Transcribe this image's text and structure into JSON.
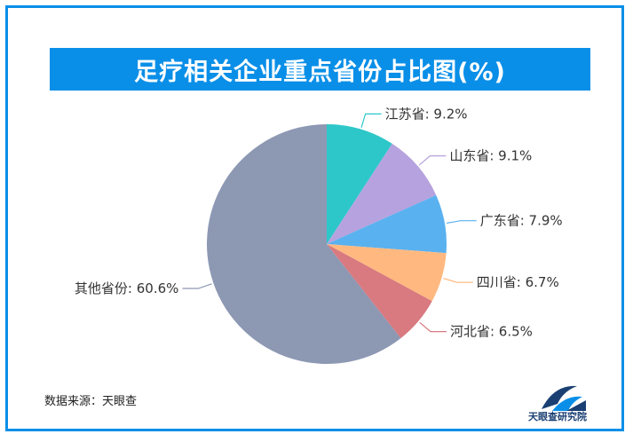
{
  "chart_data": {
    "type": "pie",
    "title": "足疗相关企业重点省份占比图(%)",
    "slices": [
      {
        "label": "江苏省",
        "value": 9.2,
        "value_text": "9.2%",
        "color": "#2ec7c9"
      },
      {
        "label": "山东省",
        "value": 9.1,
        "value_text": "9.1%",
        "color": "#b6a2de"
      },
      {
        "label": "广东省",
        "value": 7.9,
        "value_text": "7.9%",
        "color": "#5ab1ef"
      },
      {
        "label": "四川省",
        "value": 6.7,
        "value_text": "6.7%",
        "color": "#ffb980"
      },
      {
        "label": "河北省",
        "value": 6.5,
        "value_text": "6.5%",
        "color": "#d87a80"
      },
      {
        "label": "其他省份",
        "value": 60.6,
        "value_text": "60.6%",
        "color": "#8d98b3"
      }
    ]
  },
  "source": "数据来源：天眼查",
  "brand": {
    "name": "天眼查研究院",
    "color": "#1a3f73",
    "accent": "#0a8fe8"
  },
  "frame_color": "#0a8fe8"
}
